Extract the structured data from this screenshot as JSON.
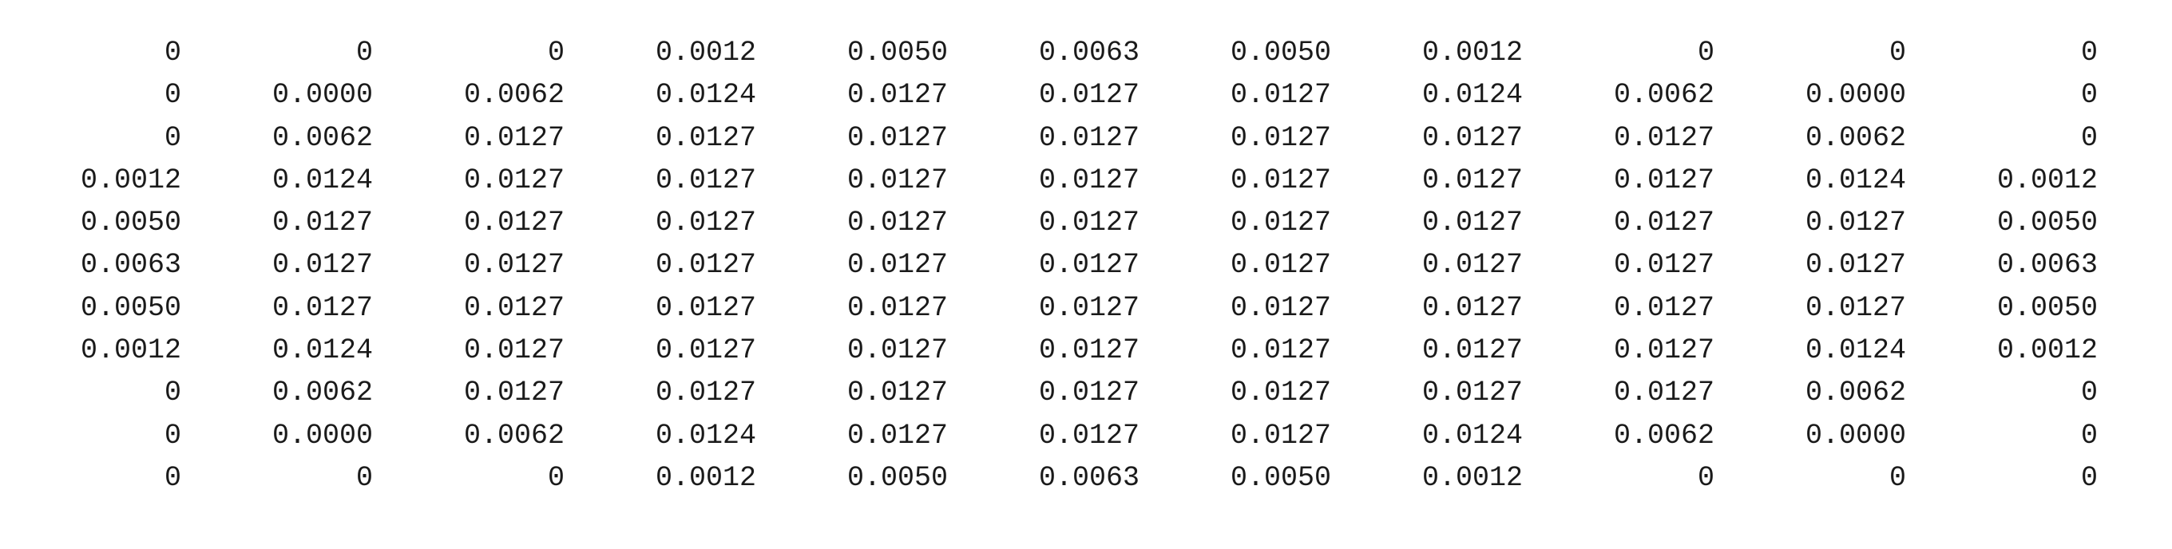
{
  "matrix": {
    "rows": [
      [
        "0",
        "0",
        "0",
        "0.0012",
        "0.0050",
        "0.0063",
        "0.0050",
        "0.0012",
        "0",
        "0",
        "0"
      ],
      [
        "0",
        "0.0000",
        "0.0062",
        "0.0124",
        "0.0127",
        "0.0127",
        "0.0127",
        "0.0124",
        "0.0062",
        "0.0000",
        "0"
      ],
      [
        "0",
        "0.0062",
        "0.0127",
        "0.0127",
        "0.0127",
        "0.0127",
        "0.0127",
        "0.0127",
        "0.0127",
        "0.0062",
        "0"
      ],
      [
        "0.0012",
        "0.0124",
        "0.0127",
        "0.0127",
        "0.0127",
        "0.0127",
        "0.0127",
        "0.0127",
        "0.0127",
        "0.0124",
        "0.0012"
      ],
      [
        "0.0050",
        "0.0127",
        "0.0127",
        "0.0127",
        "0.0127",
        "0.0127",
        "0.0127",
        "0.0127",
        "0.0127",
        "0.0127",
        "0.0050"
      ],
      [
        "0.0063",
        "0.0127",
        "0.0127",
        "0.0127",
        "0.0127",
        "0.0127",
        "0.0127",
        "0.0127",
        "0.0127",
        "0.0127",
        "0.0063"
      ],
      [
        "0.0050",
        "0.0127",
        "0.0127",
        "0.0127",
        "0.0127",
        "0.0127",
        "0.0127",
        "0.0127",
        "0.0127",
        "0.0127",
        "0.0050"
      ],
      [
        "0.0012",
        "0.0124",
        "0.0127",
        "0.0127",
        "0.0127",
        "0.0127",
        "0.0127",
        "0.0127",
        "0.0127",
        "0.0124",
        "0.0012"
      ],
      [
        "0",
        "0.0062",
        "0.0127",
        "0.0127",
        "0.0127",
        "0.0127",
        "0.0127",
        "0.0127",
        "0.0127",
        "0.0062",
        "0"
      ],
      [
        "0",
        "0.0000",
        "0.0062",
        "0.0124",
        "0.0127",
        "0.0127",
        "0.0127",
        "0.0124",
        "0.0062",
        "0.0000",
        "0"
      ],
      [
        "0",
        "0",
        "0",
        "0.0012",
        "0.0050",
        "0.0063",
        "0.0050",
        "0.0012",
        "0",
        "0",
        "0"
      ]
    ]
  }
}
